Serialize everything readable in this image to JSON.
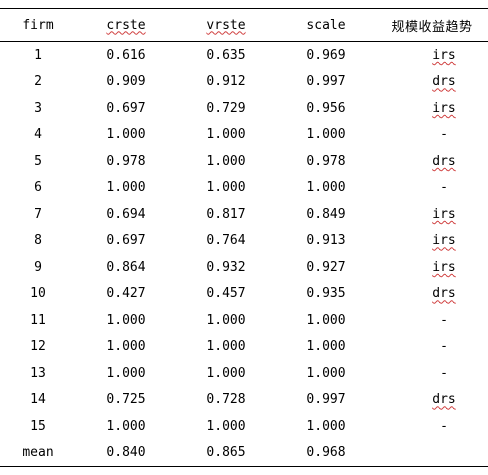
{
  "table": {
    "headers": {
      "firm": "firm",
      "crste": "crste",
      "vrste": "vrste",
      "scale": "scale",
      "trend": "规模收益趋势"
    },
    "rows": [
      {
        "firm": "1",
        "crste": "0.616",
        "vrste": "0.635",
        "scale": "0.969",
        "trend": "irs"
      },
      {
        "firm": "2",
        "crste": "0.909",
        "vrste": "0.912",
        "scale": "0.997",
        "trend": "drs"
      },
      {
        "firm": "3",
        "crste": "0.697",
        "vrste": "0.729",
        "scale": "0.956",
        "trend": "irs"
      },
      {
        "firm": "4",
        "crste": "1.000",
        "vrste": "1.000",
        "scale": "1.000",
        "trend": "-"
      },
      {
        "firm": "5",
        "crste": "0.978",
        "vrste": "1.000",
        "scale": "0.978",
        "trend": "drs"
      },
      {
        "firm": "6",
        "crste": "1.000",
        "vrste": "1.000",
        "scale": "1.000",
        "trend": "-"
      },
      {
        "firm": "7",
        "crste": "0.694",
        "vrste": "0.817",
        "scale": "0.849",
        "trend": "irs"
      },
      {
        "firm": "8",
        "crste": "0.697",
        "vrste": "0.764",
        "scale": "0.913",
        "trend": "irs"
      },
      {
        "firm": "9",
        "crste": "0.864",
        "vrste": "0.932",
        "scale": "0.927",
        "trend": "irs"
      },
      {
        "firm": "10",
        "crste": "0.427",
        "vrste": "0.457",
        "scale": "0.935",
        "trend": "drs"
      },
      {
        "firm": "11",
        "crste": "1.000",
        "vrste": "1.000",
        "scale": "1.000",
        "trend": "-"
      },
      {
        "firm": "12",
        "crste": "1.000",
        "vrste": "1.000",
        "scale": "1.000",
        "trend": "-"
      },
      {
        "firm": "13",
        "crste": "1.000",
        "vrste": "1.000",
        "scale": "1.000",
        "trend": "-"
      },
      {
        "firm": "14",
        "crste": "0.725",
        "vrste": "0.728",
        "scale": "0.997",
        "trend": "drs"
      },
      {
        "firm": "15",
        "crste": "1.000",
        "vrste": "1.000",
        "scale": "1.000",
        "trend": "-"
      },
      {
        "firm": "mean",
        "crste": "0.840",
        "vrste": "0.865",
        "scale": "0.968",
        "trend": ""
      }
    ]
  }
}
